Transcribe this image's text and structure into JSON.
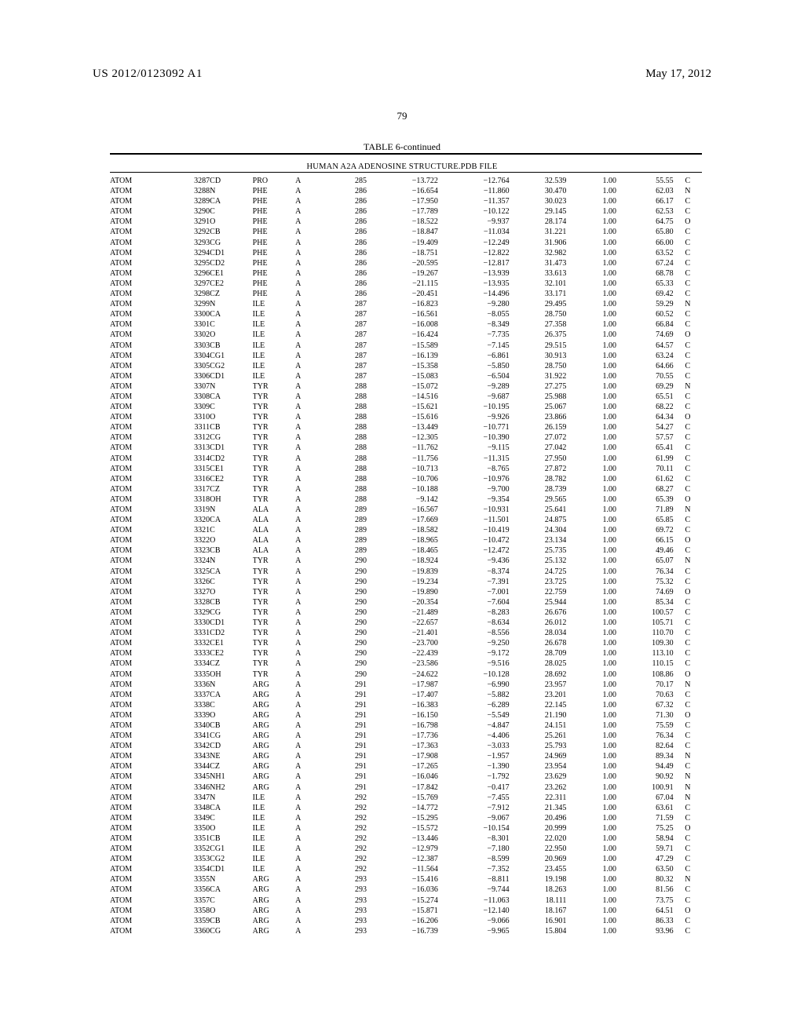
{
  "header": {
    "pub_number": "US 2012/0123092 A1",
    "pub_date": "May 17, 2012",
    "page_number": "79"
  },
  "table": {
    "title": "TABLE 6-continued",
    "subtitle": "HUMAN A2A ADENOSINE STRUCTURE.PDB FILE",
    "col_widths_pct": [
      8,
      6,
      6,
      6,
      4,
      6,
      10,
      10,
      8,
      7,
      8,
      4
    ],
    "rows": [
      [
        "ATOM",
        "3287",
        "CD",
        "PRO",
        "A",
        "285",
        "−13.722",
        "−12.764",
        "32.539",
        "1.00",
        "55.55",
        "C"
      ],
      [
        "ATOM",
        "3288",
        "N",
        "PHE",
        "A",
        "286",
        "−16.654",
        "−11.860",
        "30.470",
        "1.00",
        "62.03",
        "N"
      ],
      [
        "ATOM",
        "3289",
        "CA",
        "PHE",
        "A",
        "286",
        "−17.950",
        "−11.357",
        "30.023",
        "1.00",
        "66.17",
        "C"
      ],
      [
        "ATOM",
        "3290",
        "C",
        "PHE",
        "A",
        "286",
        "−17.789",
        "−10.122",
        "29.145",
        "1.00",
        "62.53",
        "C"
      ],
      [
        "ATOM",
        "3291",
        "O",
        "PHE",
        "A",
        "286",
        "−18.522",
        "−9.937",
        "28.174",
        "1.00",
        "64.75",
        "O"
      ],
      [
        "ATOM",
        "3292",
        "CB",
        "PHE",
        "A",
        "286",
        "−18.847",
        "−11.034",
        "31.221",
        "1.00",
        "65.80",
        "C"
      ],
      [
        "ATOM",
        "3293",
        "CG",
        "PHE",
        "A",
        "286",
        "−19.409",
        "−12.249",
        "31.906",
        "1.00",
        "66.00",
        "C"
      ],
      [
        "ATOM",
        "3294",
        "CD1",
        "PHE",
        "A",
        "286",
        "−18.751",
        "−12.822",
        "32.982",
        "1.00",
        "63.52",
        "C"
      ],
      [
        "ATOM",
        "3295",
        "CD2",
        "PHE",
        "A",
        "286",
        "−20.595",
        "−12.817",
        "31.473",
        "1.00",
        "67.24",
        "C"
      ],
      [
        "ATOM",
        "3296",
        "CE1",
        "PHE",
        "A",
        "286",
        "−19.267",
        "−13.939",
        "33.613",
        "1.00",
        "68.78",
        "C"
      ],
      [
        "ATOM",
        "3297",
        "CE2",
        "PHE",
        "A",
        "286",
        "−21.115",
        "−13.935",
        "32.101",
        "1.00",
        "65.33",
        "C"
      ],
      [
        "ATOM",
        "3298",
        "CZ",
        "PHE",
        "A",
        "286",
        "−20.451",
        "−14.496",
        "33.171",
        "1.00",
        "69.42",
        "C"
      ],
      [
        "ATOM",
        "3299",
        "N",
        "ILE",
        "A",
        "287",
        "−16.823",
        "−9.280",
        "29.495",
        "1.00",
        "59.29",
        "N"
      ],
      [
        "ATOM",
        "3300",
        "CA",
        "ILE",
        "A",
        "287",
        "−16.561",
        "−8.055",
        "28.750",
        "1.00",
        "60.52",
        "C"
      ],
      [
        "ATOM",
        "3301",
        "C",
        "ILE",
        "A",
        "287",
        "−16.008",
        "−8.349",
        "27.358",
        "1.00",
        "66.84",
        "C"
      ],
      [
        "ATOM",
        "3302",
        "O",
        "ILE",
        "A",
        "287",
        "−16.424",
        "−7.735",
        "26.375",
        "1.00",
        "74.69",
        "O"
      ],
      [
        "ATOM",
        "3303",
        "CB",
        "ILE",
        "A",
        "287",
        "−15.589",
        "−7.145",
        "29.515",
        "1.00",
        "64.57",
        "C"
      ],
      [
        "ATOM",
        "3304",
        "CG1",
        "ILE",
        "A",
        "287",
        "−16.139",
        "−6.861",
        "30.913",
        "1.00",
        "63.24",
        "C"
      ],
      [
        "ATOM",
        "3305",
        "CG2",
        "ILE",
        "A",
        "287",
        "−15.358",
        "−5.850",
        "28.750",
        "1.00",
        "64.66",
        "C"
      ],
      [
        "ATOM",
        "3306",
        "CD1",
        "ILE",
        "A",
        "287",
        "−15.083",
        "−6.504",
        "31.922",
        "1.00",
        "70.55",
        "C"
      ],
      [
        "ATOM",
        "3307",
        "N",
        "TYR",
        "A",
        "288",
        "−15.072",
        "−9.289",
        "27.275",
        "1.00",
        "69.29",
        "N"
      ],
      [
        "ATOM",
        "3308",
        "CA",
        "TYR",
        "A",
        "288",
        "−14.516",
        "−9.687",
        "25.988",
        "1.00",
        "65.51",
        "C"
      ],
      [
        "ATOM",
        "3309",
        "C",
        "TYR",
        "A",
        "288",
        "−15.621",
        "−10.195",
        "25.067",
        "1.00",
        "68.22",
        "C"
      ],
      [
        "ATOM",
        "3310",
        "O",
        "TYR",
        "A",
        "288",
        "−15.616",
        "−9.926",
        "23.866",
        "1.00",
        "64.34",
        "O"
      ],
      [
        "ATOM",
        "3311",
        "CB",
        "TYR",
        "A",
        "288",
        "−13.449",
        "−10.771",
        "26.159",
        "1.00",
        "54.27",
        "C"
      ],
      [
        "ATOM",
        "3312",
        "CG",
        "TYR",
        "A",
        "288",
        "−12.305",
        "−10.390",
        "27.072",
        "1.00",
        "57.57",
        "C"
      ],
      [
        "ATOM",
        "3313",
        "CD1",
        "TYR",
        "A",
        "288",
        "−11.762",
        "−9.115",
        "27.042",
        "1.00",
        "65.41",
        "C"
      ],
      [
        "ATOM",
        "3314",
        "CD2",
        "TYR",
        "A",
        "288",
        "−11.756",
        "−11.315",
        "27.950",
        "1.00",
        "61.99",
        "C"
      ],
      [
        "ATOM",
        "3315",
        "CE1",
        "TYR",
        "A",
        "288",
        "−10.713",
        "−8.765",
        "27.872",
        "1.00",
        "70.11",
        "C"
      ],
      [
        "ATOM",
        "3316",
        "CE2",
        "TYR",
        "A",
        "288",
        "−10.706",
        "−10.976",
        "28.782",
        "1.00",
        "61.62",
        "C"
      ],
      [
        "ATOM",
        "3317",
        "CZ",
        "TYR",
        "A",
        "288",
        "−10.188",
        "−9.700",
        "28.739",
        "1.00",
        "68.27",
        "C"
      ],
      [
        "ATOM",
        "3318",
        "OH",
        "TYR",
        "A",
        "288",
        "−9.142",
        "−9.354",
        "29.565",
        "1.00",
        "65.39",
        "O"
      ],
      [
        "ATOM",
        "3319",
        "N",
        "ALA",
        "A",
        "289",
        "−16.567",
        "−10.931",
        "25.641",
        "1.00",
        "71.89",
        "N"
      ],
      [
        "ATOM",
        "3320",
        "CA",
        "ALA",
        "A",
        "289",
        "−17.669",
        "−11.501",
        "24.875",
        "1.00",
        "65.85",
        "C"
      ],
      [
        "ATOM",
        "3321",
        "C",
        "ALA",
        "A",
        "289",
        "−18.582",
        "−10.419",
        "24.304",
        "1.00",
        "69.72",
        "C"
      ],
      [
        "ATOM",
        "3322",
        "O",
        "ALA",
        "A",
        "289",
        "−18.965",
        "−10.472",
        "23.134",
        "1.00",
        "66.15",
        "O"
      ],
      [
        "ATOM",
        "3323",
        "CB",
        "ALA",
        "A",
        "289",
        "−18.465",
        "−12.472",
        "25.735",
        "1.00",
        "49.46",
        "C"
      ],
      [
        "ATOM",
        "3324",
        "N",
        "TYR",
        "A",
        "290",
        "−18.924",
        "−9.436",
        "25.132",
        "1.00",
        "65.07",
        "N"
      ],
      [
        "ATOM",
        "3325",
        "CA",
        "TYR",
        "A",
        "290",
        "−19.839",
        "−8.374",
        "24.725",
        "1.00",
        "76.34",
        "C"
      ],
      [
        "ATOM",
        "3326",
        "C",
        "TYR",
        "A",
        "290",
        "−19.234",
        "−7.391",
        "23.725",
        "1.00",
        "75.32",
        "C"
      ],
      [
        "ATOM",
        "3327",
        "O",
        "TYR",
        "A",
        "290",
        "−19.890",
        "−7.001",
        "22.759",
        "1.00",
        "74.69",
        "O"
      ],
      [
        "ATOM",
        "3328",
        "CB",
        "TYR",
        "A",
        "290",
        "−20.354",
        "−7.604",
        "25.944",
        "1.00",
        "85.34",
        "C"
      ],
      [
        "ATOM",
        "3329",
        "CG",
        "TYR",
        "A",
        "290",
        "−21.489",
        "−8.283",
        "26.676",
        "1.00",
        "100.57",
        "C"
      ],
      [
        "ATOM",
        "3330",
        "CD1",
        "TYR",
        "A",
        "290",
        "−22.657",
        "−8.634",
        "26.012",
        "1.00",
        "105.71",
        "C"
      ],
      [
        "ATOM",
        "3331",
        "CD2",
        "TYR",
        "A",
        "290",
        "−21.401",
        "−8.556",
        "28.034",
        "1.00",
        "110.70",
        "C"
      ],
      [
        "ATOM",
        "3332",
        "CE1",
        "TYR",
        "A",
        "290",
        "−23.700",
        "−9.250",
        "26.678",
        "1.00",
        "109.30",
        "C"
      ],
      [
        "ATOM",
        "3333",
        "CE2",
        "TYR",
        "A",
        "290",
        "−22.439",
        "−9.172",
        "28.709",
        "1.00",
        "113.10",
        "C"
      ],
      [
        "ATOM",
        "3334",
        "CZ",
        "TYR",
        "A",
        "290",
        "−23.586",
        "−9.516",
        "28.025",
        "1.00",
        "110.15",
        "C"
      ],
      [
        "ATOM",
        "3335",
        "OH",
        "TYR",
        "A",
        "290",
        "−24.622",
        "−10.128",
        "28.692",
        "1.00",
        "108.86",
        "O"
      ],
      [
        "ATOM",
        "3336",
        "N",
        "ARG",
        "A",
        "291",
        "−17.987",
        "−6.990",
        "23.957",
        "1.00",
        "70.17",
        "N"
      ],
      [
        "ATOM",
        "3337",
        "CA",
        "ARG",
        "A",
        "291",
        "−17.407",
        "−5.882",
        "23.201",
        "1.00",
        "70.63",
        "C"
      ],
      [
        "ATOM",
        "3338",
        "C",
        "ARG",
        "A",
        "291",
        "−16.383",
        "−6.289",
        "22.145",
        "1.00",
        "67.32",
        "C"
      ],
      [
        "ATOM",
        "3339",
        "O",
        "ARG",
        "A",
        "291",
        "−16.150",
        "−5.549",
        "21.190",
        "1.00",
        "71.30",
        "O"
      ],
      [
        "ATOM",
        "3340",
        "CB",
        "ARG",
        "A",
        "291",
        "−16.798",
        "−4.847",
        "24.151",
        "1.00",
        "75.59",
        "C"
      ],
      [
        "ATOM",
        "3341",
        "CG",
        "ARG",
        "A",
        "291",
        "−17.736",
        "−4.406",
        "25.261",
        "1.00",
        "76.34",
        "C"
      ],
      [
        "ATOM",
        "3342",
        "CD",
        "ARG",
        "A",
        "291",
        "−17.363",
        "−3.033",
        "25.793",
        "1.00",
        "82.64",
        "C"
      ],
      [
        "ATOM",
        "3343",
        "NE",
        "ARG",
        "A",
        "291",
        "−17.908",
        "−1.957",
        "24.969",
        "1.00",
        "89.34",
        "N"
      ],
      [
        "ATOM",
        "3344",
        "CZ",
        "ARG",
        "A",
        "291",
        "−17.265",
        "−1.390",
        "23.954",
        "1.00",
        "94.49",
        "C"
      ],
      [
        "ATOM",
        "3345",
        "NH1",
        "ARG",
        "A",
        "291",
        "−16.046",
        "−1.792",
        "23.629",
        "1.00",
        "90.92",
        "N"
      ],
      [
        "ATOM",
        "3346",
        "NH2",
        "ARG",
        "A",
        "291",
        "−17.842",
        "−0.417",
        "23.262",
        "1.00",
        "100.91",
        "N"
      ],
      [
        "ATOM",
        "3347",
        "N",
        "ILE",
        "A",
        "292",
        "−15.769",
        "−7.455",
        "22.311",
        "1.00",
        "67.04",
        "N"
      ],
      [
        "ATOM",
        "3348",
        "CA",
        "ILE",
        "A",
        "292",
        "−14.772",
        "−7.912",
        "21.345",
        "1.00",
        "63.61",
        "C"
      ],
      [
        "ATOM",
        "3349",
        "C",
        "ILE",
        "A",
        "292",
        "−15.295",
        "−9.067",
        "20.496",
        "1.00",
        "71.59",
        "C"
      ],
      [
        "ATOM",
        "3350",
        "O",
        "ILE",
        "A",
        "292",
        "−15.572",
        "−10.154",
        "20.999",
        "1.00",
        "75.25",
        "O"
      ],
      [
        "ATOM",
        "3351",
        "CB",
        "ILE",
        "A",
        "292",
        "−13.446",
        "−8.301",
        "22.020",
        "1.00",
        "58.94",
        "C"
      ],
      [
        "ATOM",
        "3352",
        "CG1",
        "ILE",
        "A",
        "292",
        "−12.979",
        "−7.180",
        "22.950",
        "1.00",
        "59.71",
        "C"
      ],
      [
        "ATOM",
        "3353",
        "CG2",
        "ILE",
        "A",
        "292",
        "−12.387",
        "−8.599",
        "20.969",
        "1.00",
        "47.29",
        "C"
      ],
      [
        "ATOM",
        "3354",
        "CD1",
        "ILE",
        "A",
        "292",
        "−11.564",
        "−7.352",
        "23.455",
        "1.00",
        "63.50",
        "C"
      ],
      [
        "ATOM",
        "3355",
        "N",
        "ARG",
        "A",
        "293",
        "−15.416",
        "−8.811",
        "19.198",
        "1.00",
        "80.32",
        "N"
      ],
      [
        "ATOM",
        "3356",
        "CA",
        "ARG",
        "A",
        "293",
        "−16.036",
        "−9.744",
        "18.263",
        "1.00",
        "81.56",
        "C"
      ],
      [
        "ATOM",
        "3357",
        "C",
        "ARG",
        "A",
        "293",
        "−15.274",
        "−11.063",
        "18.111",
        "1.00",
        "73.75",
        "C"
      ],
      [
        "ATOM",
        "3358",
        "O",
        "ARG",
        "A",
        "293",
        "−15.871",
        "−12.140",
        "18.167",
        "1.00",
        "64.51",
        "O"
      ],
      [
        "ATOM",
        "3359",
        "CB",
        "ARG",
        "A",
        "293",
        "−16.206",
        "−9.066",
        "16.901",
        "1.00",
        "86.33",
        "C"
      ],
      [
        "ATOM",
        "3360",
        "CG",
        "ARG",
        "A",
        "293",
        "−16.739",
        "−9.965",
        "15.804",
        "1.00",
        "93.96",
        "C"
      ]
    ]
  }
}
